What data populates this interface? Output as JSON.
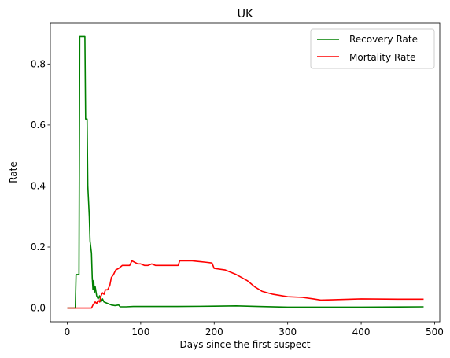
{
  "chart_data": {
    "type": "line",
    "title": "UK",
    "xlabel": "Days since the first suspect",
    "ylabel": "Rate",
    "xlim": [
      -23,
      507
    ],
    "ylim": [
      -0.045,
      0.935
    ],
    "xticks": [
      0,
      100,
      200,
      300,
      400,
      500
    ],
    "yticks": [
      0.0,
      0.2,
      0.4,
      0.6,
      0.8
    ],
    "xtick_labels": [
      "0",
      "100",
      "200",
      "300",
      "400",
      "500"
    ],
    "ytick_labels": [
      "0.0",
      "0.2",
      "0.4",
      "0.6",
      "0.8"
    ],
    "grid": false,
    "legend_position": "top-right",
    "series": [
      {
        "name": "Recovery Rate",
        "color": "#008000",
        "points": [
          [
            0,
            0
          ],
          [
            11,
            0
          ],
          [
            12,
            0.11
          ],
          [
            16,
            0.11
          ],
          [
            17,
            0.89
          ],
          [
            24,
            0.89
          ],
          [
            25,
            0.62
          ],
          [
            27,
            0.62
          ],
          [
            28,
            0.4
          ],
          [
            30,
            0.3
          ],
          [
            31,
            0.22
          ],
          [
            33,
            0.18
          ],
          [
            34,
            0.1
          ],
          [
            35,
            0.06
          ],
          [
            36,
            0.09
          ],
          [
            37,
            0.05
          ],
          [
            38,
            0.07
          ],
          [
            40,
            0.04
          ],
          [
            42,
            0.03
          ],
          [
            44,
            0.04
          ],
          [
            46,
            0.02
          ],
          [
            48,
            0.03
          ],
          [
            50,
            0.02
          ],
          [
            55,
            0.015
          ],
          [
            60,
            0.01
          ],
          [
            65,
            0.008
          ],
          [
            70,
            0.01
          ],
          [
            72,
            0.004
          ],
          [
            80,
            0.004
          ],
          [
            90,
            0.005
          ],
          [
            150,
            0.005
          ],
          [
            200,
            0.006
          ],
          [
            230,
            0.007
          ],
          [
            260,
            0.005
          ],
          [
            300,
            0.003
          ],
          [
            400,
            0.003
          ],
          [
            485,
            0.004
          ]
        ]
      },
      {
        "name": "Mortality Rate",
        "color": "#ff0000",
        "points": [
          [
            0,
            0
          ],
          [
            10,
            0
          ],
          [
            20,
            0
          ],
          [
            33,
            0
          ],
          [
            35,
            0.01
          ],
          [
            38,
            0.02
          ],
          [
            40,
            0.015
          ],
          [
            42,
            0.025
          ],
          [
            44,
            0.02
          ],
          [
            46,
            0.04
          ],
          [
            48,
            0.05
          ],
          [
            50,
            0.045
          ],
          [
            52,
            0.06
          ],
          [
            55,
            0.06
          ],
          [
            58,
            0.075
          ],
          [
            60,
            0.1
          ],
          [
            63,
            0.11
          ],
          [
            66,
            0.125
          ],
          [
            70,
            0.13
          ],
          [
            75,
            0.14
          ],
          [
            80,
            0.14
          ],
          [
            85,
            0.14
          ],
          [
            88,
            0.155
          ],
          [
            92,
            0.15
          ],
          [
            96,
            0.145
          ],
          [
            100,
            0.145
          ],
          [
            105,
            0.14
          ],
          [
            110,
            0.14
          ],
          [
            115,
            0.145
          ],
          [
            120,
            0.14
          ],
          [
            130,
            0.14
          ],
          [
            140,
            0.14
          ],
          [
            151,
            0.14
          ],
          [
            153,
            0.155
          ],
          [
            170,
            0.155
          ],
          [
            190,
            0.15
          ],
          [
            197,
            0.148
          ],
          [
            200,
            0.13
          ],
          [
            215,
            0.125
          ],
          [
            230,
            0.11
          ],
          [
            245,
            0.09
          ],
          [
            255,
            0.07
          ],
          [
            265,
            0.055
          ],
          [
            280,
            0.045
          ],
          [
            300,
            0.037
          ],
          [
            320,
            0.035
          ],
          [
            335,
            0.03
          ],
          [
            345,
            0.026
          ],
          [
            360,
            0.027
          ],
          [
            400,
            0.03
          ],
          [
            450,
            0.029
          ],
          [
            485,
            0.029
          ]
        ]
      }
    ]
  }
}
